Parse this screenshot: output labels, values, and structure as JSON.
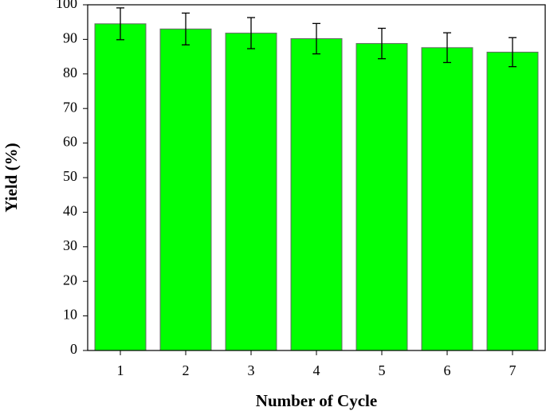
{
  "chart_data": {
    "type": "bar",
    "x_label": "Number of Cycle",
    "y_label": "Yield (%)",
    "categories": [
      "1",
      "2",
      "3",
      "4",
      "5",
      "6",
      "7"
    ],
    "values": [
      94.5,
      93.0,
      91.8,
      90.2,
      88.8,
      87.6,
      86.3
    ],
    "errors": [
      4.6,
      4.6,
      4.5,
      4.4,
      4.4,
      4.3,
      4.2
    ],
    "color": "#00ff00",
    "ylim": [
      0,
      100
    ],
    "yticks": [
      0,
      10,
      20,
      30,
      40,
      50,
      60,
      70,
      80,
      90,
      100
    ]
  }
}
